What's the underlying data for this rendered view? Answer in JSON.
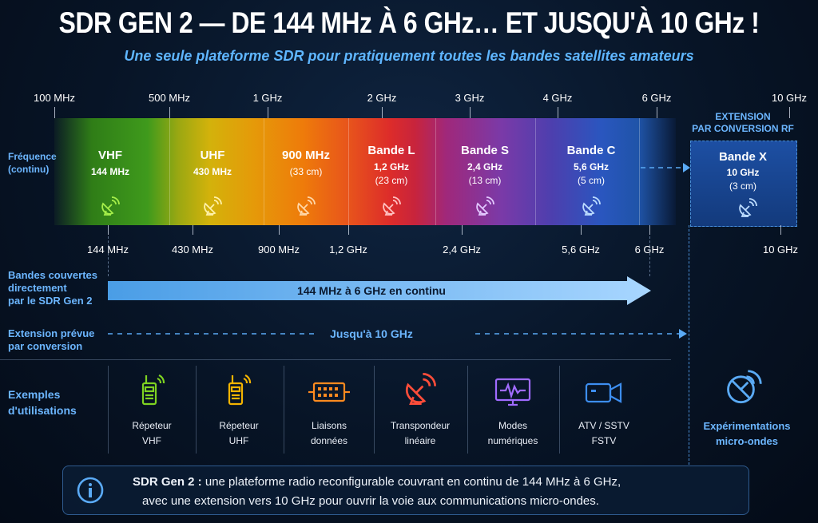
{
  "title": "SDR GEN 2 — DE 144 MHz À 6 GHz… ET JUSQU'À 10 GHz !",
  "subtitle": "Une seule plateforme SDR pour pratiquement toutes les bandes satellites amateurs",
  "top_ticks": [
    "100 MHz",
    "500 MHz",
    "1 GHz",
    "2 GHz",
    "3 GHz",
    "4 GHz",
    "6 GHz",
    "10 GHz"
  ],
  "bottom_ticks": [
    "144 MHz",
    "430 MHz",
    "900 MHz",
    "1,2 GHz",
    "2,4 GHz",
    "5,6 GHz",
    "6 GHz",
    "10 GHz"
  ],
  "freq_label": {
    "line1": "Fréquence",
    "line2": "(continu)"
  },
  "bands": [
    {
      "name": "VHF",
      "freq": "144 MHz",
      "wl": ""
    },
    {
      "name": "UHF",
      "freq": "430 MHz",
      "wl": ""
    },
    {
      "name": "900 MHz",
      "freq": "",
      "wl": "(33 cm)"
    },
    {
      "name": "Bande L",
      "freq": "1,2 GHz",
      "wl": "(23 cm)"
    },
    {
      "name": "Bande S",
      "freq": "2,4 GHz",
      "wl": "(13 cm)"
    },
    {
      "name": "Bande C",
      "freq": "5,6 GHz",
      "wl": "(5 cm)"
    }
  ],
  "extension": {
    "title_line1": "EXTENSION",
    "title_line2": "PAR CONVERSION RF",
    "band_name": "Bande X",
    "band_freq": "10 GHz",
    "band_wl": "(3 cm)"
  },
  "covered": {
    "label_line1": "Bandes couvertes",
    "label_line2": "directement",
    "label_line3": "par le SDR Gen 2",
    "arrow_text": "144 MHz à 6 GHz en continu"
  },
  "planned": {
    "label_line1": "Extension prévue",
    "label_line2": "par conversion",
    "arrow_text": "Jusqu'à 10 GHz"
  },
  "uses": {
    "label_line1": "Exemples",
    "label_line2": "d'utilisations",
    "items": [
      {
        "icon": "radio-icon",
        "line1": "Répeteur",
        "line2": "VHF",
        "color": "#7ed321"
      },
      {
        "icon": "radio-icon",
        "line1": "Répeteur",
        "line2": "UHF",
        "color": "#f5b400"
      },
      {
        "icon": "data-link-icon",
        "line1": "Liaisons",
        "line2": "données",
        "color": "#ff8a1f"
      },
      {
        "icon": "satellite-dish-icon",
        "line1": "Transpondeur",
        "line2": "linéaire",
        "color": "#ff4d3a"
      },
      {
        "icon": "monitor-icon",
        "line1": "Modes",
        "line2": "numériques",
        "color": "#a06bff"
      },
      {
        "icon": "camera-icon",
        "line1": "ATV / SSTV",
        "line2": "FSTV",
        "color": "#3d8ef0"
      },
      {
        "icon": "satellite-dish-icon",
        "line1": "Expérimentations",
        "line2": "micro-ondes",
        "color": "#5aaaf5"
      }
    ]
  },
  "info": {
    "bold": "SDR Gen 2 :",
    "text1": " une plateforme radio reconfigurable couvrant en continu de 144 MHz à 6 GHz,",
    "text2": "avec une extension vers 10 GHz pour ouvrir la voie aux communications micro-ondes."
  },
  "colors": {
    "accent": "#5fb6ff",
    "arrow": "#8ec9ff",
    "band_x": "#1d4fa3"
  }
}
